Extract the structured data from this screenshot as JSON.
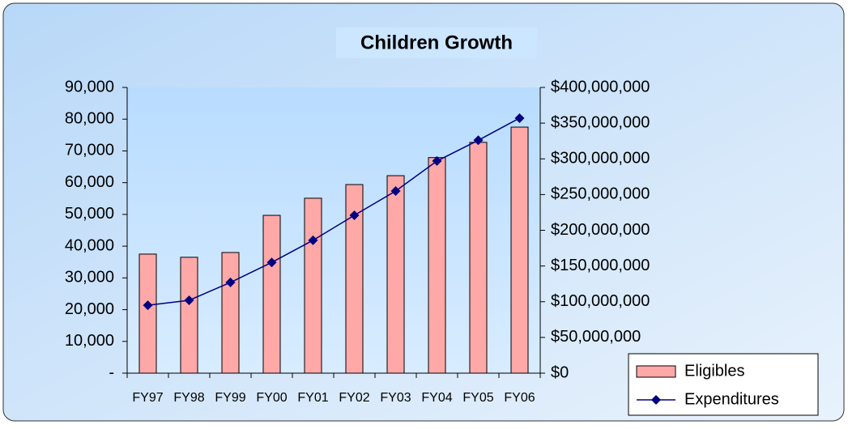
{
  "chart_data": {
    "type": "bar_line",
    "title": "Children Growth",
    "categories": [
      "FY97",
      "FY98",
      "FY99",
      "FY00",
      "FY01",
      "FY02",
      "FY03",
      "FY04",
      "FY05",
      "FY06"
    ],
    "series": [
      {
        "name": "Eligibles",
        "type": "bar",
        "color": "#ffa8a8",
        "values": [
          37500,
          36500,
          38000,
          49700,
          55100,
          59400,
          62200,
          67900,
          72700,
          77500
        ]
      },
      {
        "name": "Expenditures",
        "type": "line",
        "axis": "y2",
        "color": "#000080",
        "values": [
          95000000,
          102000000,
          127000000,
          155000000,
          186000000,
          221000000,
          255000000,
          297000000,
          326000000,
          357000000
        ]
      }
    ],
    "ylim": [
      0,
      90000
    ],
    "yticks": [
      {
        "value": 0,
        "label": "-"
      },
      {
        "value": 10000,
        "label": "10,000"
      },
      {
        "value": 20000,
        "label": "20,000"
      },
      {
        "value": 30000,
        "label": "30,000"
      },
      {
        "value": 40000,
        "label": "40,000"
      },
      {
        "value": 50000,
        "label": "50,000"
      },
      {
        "value": 60000,
        "label": "60,000"
      },
      {
        "value": 70000,
        "label": "70,000"
      },
      {
        "value": 80000,
        "label": "80,000"
      },
      {
        "value": 90000,
        "label": "90,000"
      }
    ],
    "y2lim": [
      0,
      400000000
    ],
    "y2ticks": [
      {
        "value": 0,
        "label": "$0"
      },
      {
        "value": 50000000,
        "label": "$50,000,000"
      },
      {
        "value": 100000000,
        "label": "$100,000,000"
      },
      {
        "value": 150000000,
        "label": "$150,000,000"
      },
      {
        "value": 200000000,
        "label": "$200,000,000"
      },
      {
        "value": 250000000,
        "label": "$250,000,000"
      },
      {
        "value": 300000000,
        "label": "$300,000,000"
      },
      {
        "value": 350000000,
        "label": "$350,000,000"
      },
      {
        "value": 400000000,
        "label": "$400,000,000"
      }
    ],
    "legend": "bottom-right"
  }
}
